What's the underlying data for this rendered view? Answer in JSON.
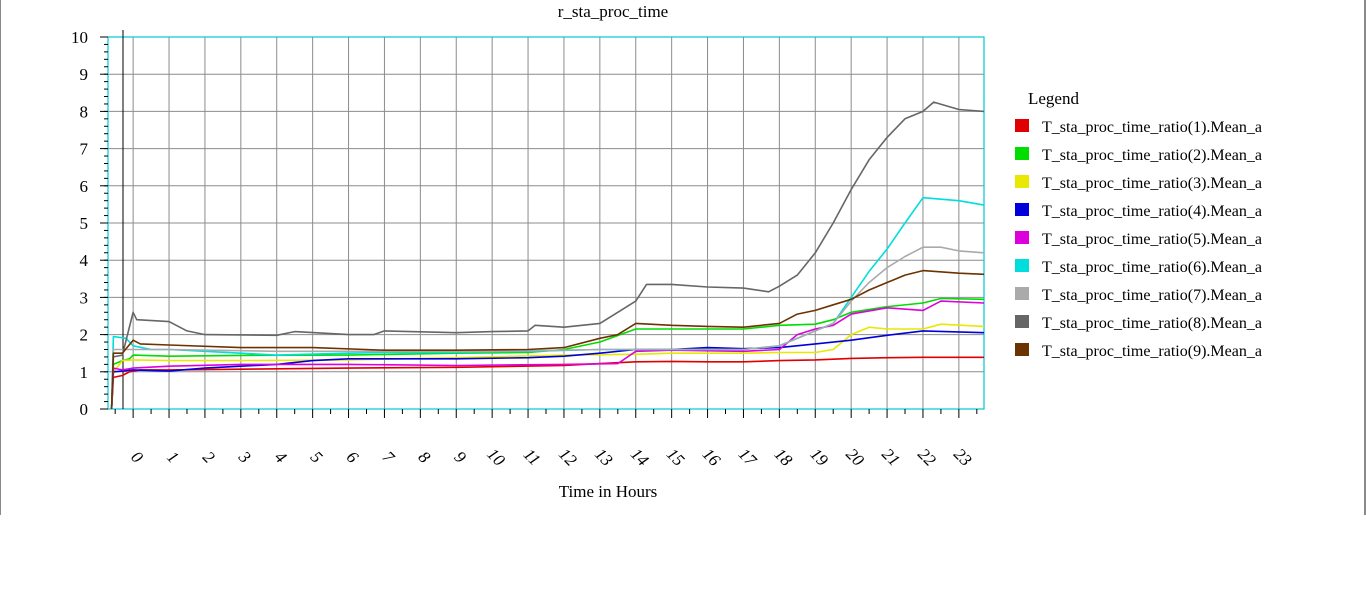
{
  "chart_data": {
    "type": "line",
    "title": "r_sta_proc_time",
    "xlabel": "Time in Hours",
    "ylabel": "",
    "xlim": [
      -0.7,
      23.7
    ],
    "ylim": [
      0,
      10
    ],
    "y_ticks": [
      "0",
      "1",
      "2",
      "3",
      "4",
      "5",
      "6",
      "7",
      "8",
      "9",
      "10"
    ],
    "x_ticks": [
      "0",
      "1",
      "2",
      "3",
      "4",
      "5",
      "6",
      "7",
      "8",
      "9",
      "10",
      "11",
      "12",
      "13",
      "14",
      "15",
      "16",
      "17",
      "18",
      "19",
      "20",
      "21",
      "22",
      "23"
    ],
    "grid": true,
    "legend": {
      "title": "Legend",
      "position": "right"
    },
    "series": [
      {
        "name": "T_sta_proc_time_ratio(1).Mean_a",
        "color": "#e00000",
        "points": [
          [
            -0.6,
            0.0
          ],
          [
            -0.55,
            0.85
          ],
          [
            -0.3,
            0.9
          ],
          [
            -0.1,
            1.0
          ],
          [
            0.2,
            1.05
          ],
          [
            1,
            1.05
          ],
          [
            3,
            1.07
          ],
          [
            6,
            1.1
          ],
          [
            9,
            1.12
          ],
          [
            12,
            1.17
          ],
          [
            13,
            1.22
          ],
          [
            14,
            1.27
          ],
          [
            15,
            1.28
          ],
          [
            16,
            1.27
          ],
          [
            17,
            1.27
          ],
          [
            18,
            1.3
          ],
          [
            19,
            1.32
          ],
          [
            20,
            1.36
          ],
          [
            21,
            1.38
          ],
          [
            22,
            1.39
          ],
          [
            23.7,
            1.39
          ]
        ]
      },
      {
        "name": "T_sta_proc_time_ratio(2).Mean_a",
        "color": "#00dd00",
        "points": [
          [
            -0.6,
            0.0
          ],
          [
            -0.55,
            1.2
          ],
          [
            -0.3,
            1.3
          ],
          [
            -0.1,
            1.35
          ],
          [
            0,
            1.45
          ],
          [
            1,
            1.42
          ],
          [
            3,
            1.44
          ],
          [
            6,
            1.45
          ],
          [
            9,
            1.5
          ],
          [
            11,
            1.52
          ],
          [
            12,
            1.6
          ],
          [
            13,
            1.8
          ],
          [
            14,
            2.15
          ],
          [
            15,
            2.15
          ],
          [
            16,
            2.15
          ],
          [
            17,
            2.15
          ],
          [
            17.5,
            2.2
          ],
          [
            18,
            2.25
          ],
          [
            19,
            2.28
          ],
          [
            19.5,
            2.4
          ],
          [
            20,
            2.6
          ],
          [
            21,
            2.75
          ],
          [
            22,
            2.85
          ],
          [
            22.5,
            2.97
          ],
          [
            23.7,
            2.95
          ]
        ]
      },
      {
        "name": "T_sta_proc_time_ratio(3).Mean_a",
        "color": "#e8e800",
        "points": [
          [
            -0.6,
            0.0
          ],
          [
            -0.55,
            1.0
          ],
          [
            -0.3,
            1.3
          ],
          [
            0,
            1.32
          ],
          [
            1,
            1.3
          ],
          [
            3,
            1.3
          ],
          [
            6,
            1.32
          ],
          [
            9,
            1.38
          ],
          [
            12,
            1.45
          ],
          [
            14,
            1.47
          ],
          [
            15,
            1.5
          ],
          [
            17,
            1.5
          ],
          [
            18,
            1.52
          ],
          [
            19,
            1.52
          ],
          [
            19.5,
            1.6
          ],
          [
            20,
            2.0
          ],
          [
            20.5,
            2.2
          ],
          [
            21,
            2.15
          ],
          [
            22,
            2.15
          ],
          [
            22.5,
            2.28
          ],
          [
            23.7,
            2.22
          ]
        ]
      },
      {
        "name": "T_sta_proc_time_ratio(4).Mean_a",
        "color": "#0000dd",
        "points": [
          [
            -0.6,
            0.0
          ],
          [
            -0.55,
            1.0
          ],
          [
            -0.3,
            1.02
          ],
          [
            0,
            1.05
          ],
          [
            1,
            1.02
          ],
          [
            2,
            1.1
          ],
          [
            3,
            1.15
          ],
          [
            4,
            1.2
          ],
          [
            5,
            1.3
          ],
          [
            6,
            1.35
          ],
          [
            7,
            1.35
          ],
          [
            9,
            1.35
          ],
          [
            11,
            1.38
          ],
          [
            12,
            1.42
          ],
          [
            13,
            1.5
          ],
          [
            14,
            1.6
          ],
          [
            15,
            1.6
          ],
          [
            16,
            1.65
          ],
          [
            17,
            1.62
          ],
          [
            18,
            1.65
          ],
          [
            19,
            1.75
          ],
          [
            20,
            1.85
          ],
          [
            21,
            1.98
          ],
          [
            22,
            2.1
          ],
          [
            23.7,
            2.05
          ]
        ]
      },
      {
        "name": "T_sta_proc_time_ratio(5).Mean_a",
        "color": "#dd00dd",
        "points": [
          [
            -0.6,
            0.0
          ],
          [
            -0.55,
            1.1
          ],
          [
            -0.3,
            1.05
          ],
          [
            0,
            1.1
          ],
          [
            1,
            1.15
          ],
          [
            3,
            1.2
          ],
          [
            6,
            1.2
          ],
          [
            9,
            1.17
          ],
          [
            12,
            1.2
          ],
          [
            13.5,
            1.22
          ],
          [
            14,
            1.55
          ],
          [
            15,
            1.58
          ],
          [
            17,
            1.55
          ],
          [
            18,
            1.6
          ],
          [
            18.5,
            2.0
          ],
          [
            19,
            2.15
          ],
          [
            19.5,
            2.25
          ],
          [
            20,
            2.55
          ],
          [
            21,
            2.72
          ],
          [
            22,
            2.65
          ],
          [
            22.5,
            2.9
          ],
          [
            23.7,
            2.85
          ]
        ]
      },
      {
        "name": "T_sta_proc_time_ratio(6).Mean_a",
        "color": "#00dddd",
        "points": [
          [
            -0.6,
            0.0
          ],
          [
            -0.55,
            1.95
          ],
          [
            -0.2,
            1.9
          ],
          [
            0,
            1.7
          ],
          [
            0.5,
            1.6
          ],
          [
            1,
            1.6
          ],
          [
            2,
            1.55
          ],
          [
            4,
            1.45
          ],
          [
            6,
            1.5
          ],
          [
            7,
            1.52
          ],
          [
            9,
            1.52
          ],
          [
            11,
            1.55
          ],
          [
            13,
            1.6
          ],
          [
            14,
            1.6
          ],
          [
            15,
            1.6
          ],
          [
            16,
            1.6
          ],
          [
            17,
            1.6
          ],
          [
            18,
            1.7
          ],
          [
            19,
            2.1
          ],
          [
            19.5,
            2.3
          ],
          [
            20,
            3.0
          ],
          [
            20.5,
            3.7
          ],
          [
            21,
            4.3
          ],
          [
            21.5,
            5.0
          ],
          [
            22,
            5.68
          ],
          [
            23,
            5.6
          ],
          [
            23.7,
            5.48
          ]
        ]
      },
      {
        "name": "T_sta_proc_time_ratio(7).Mean_a",
        "color": "#aaaaaa",
        "points": [
          [
            -0.6,
            0.0
          ],
          [
            -0.55,
            1.6
          ],
          [
            0,
            1.6
          ],
          [
            1,
            1.6
          ],
          [
            4,
            1.55
          ],
          [
            7,
            1.55
          ],
          [
            10,
            1.55
          ],
          [
            13,
            1.6
          ],
          [
            15,
            1.6
          ],
          [
            17,
            1.6
          ],
          [
            18,
            1.7
          ],
          [
            19,
            2.1
          ],
          [
            19.5,
            2.3
          ],
          [
            20,
            2.9
          ],
          [
            20.5,
            3.4
          ],
          [
            21,
            3.8
          ],
          [
            21.5,
            4.1
          ],
          [
            22,
            4.35
          ],
          [
            22.5,
            4.35
          ],
          [
            23,
            4.25
          ],
          [
            23.7,
            4.2
          ]
        ]
      },
      {
        "name": "T_sta_proc_time_ratio(8).Mean_a",
        "color": "#666666",
        "points": [
          [
            -0.6,
            0.0
          ],
          [
            -0.55,
            1.4
          ],
          [
            -0.3,
            1.45
          ],
          [
            0,
            2.6
          ],
          [
            0.1,
            2.4
          ],
          [
            1,
            2.35
          ],
          [
            1.5,
            2.1
          ],
          [
            2,
            2.0
          ],
          [
            4,
            1.98
          ],
          [
            4.5,
            2.08
          ],
          [
            6,
            2.0
          ],
          [
            6.7,
            2.0
          ],
          [
            7,
            2.1
          ],
          [
            9,
            2.05
          ],
          [
            10,
            2.08
          ],
          [
            11,
            2.1
          ],
          [
            11.2,
            2.25
          ],
          [
            12,
            2.2
          ],
          [
            13,
            2.3
          ],
          [
            13.5,
            2.6
          ],
          [
            14,
            2.9
          ],
          [
            14.3,
            3.35
          ],
          [
            15,
            3.35
          ],
          [
            16,
            3.28
          ],
          [
            17,
            3.25
          ],
          [
            17.7,
            3.15
          ],
          [
            18,
            3.3
          ],
          [
            18.5,
            3.6
          ],
          [
            19,
            4.2
          ],
          [
            19.5,
            5.0
          ],
          [
            20,
            5.9
          ],
          [
            20.5,
            6.7
          ],
          [
            21,
            7.3
          ],
          [
            21.5,
            7.8
          ],
          [
            22,
            8.0
          ],
          [
            22.3,
            8.25
          ],
          [
            23,
            8.05
          ],
          [
            23.7,
            8.0
          ]
        ]
      },
      {
        "name": "T_sta_proc_time_ratio(9).Mean_a",
        "color": "#6b3300",
        "points": [
          [
            -0.6,
            0.0
          ],
          [
            -0.55,
            1.5
          ],
          [
            -0.3,
            1.5
          ],
          [
            0,
            1.85
          ],
          [
            0.2,
            1.75
          ],
          [
            1,
            1.72
          ],
          [
            3,
            1.65
          ],
          [
            5,
            1.65
          ],
          [
            7,
            1.58
          ],
          [
            9,
            1.58
          ],
          [
            11,
            1.6
          ],
          [
            12,
            1.65
          ],
          [
            13,
            1.9
          ],
          [
            13.5,
            2.0
          ],
          [
            14,
            2.3
          ],
          [
            15,
            2.25
          ],
          [
            16,
            2.22
          ],
          [
            17,
            2.2
          ],
          [
            18,
            2.3
          ],
          [
            18.5,
            2.55
          ],
          [
            19,
            2.65
          ],
          [
            19.5,
            2.8
          ],
          [
            20,
            2.95
          ],
          [
            20.5,
            3.2
          ],
          [
            21,
            3.4
          ],
          [
            21.5,
            3.6
          ],
          [
            22,
            3.72
          ],
          [
            23,
            3.65
          ],
          [
            23.7,
            3.62
          ]
        ]
      }
    ]
  }
}
